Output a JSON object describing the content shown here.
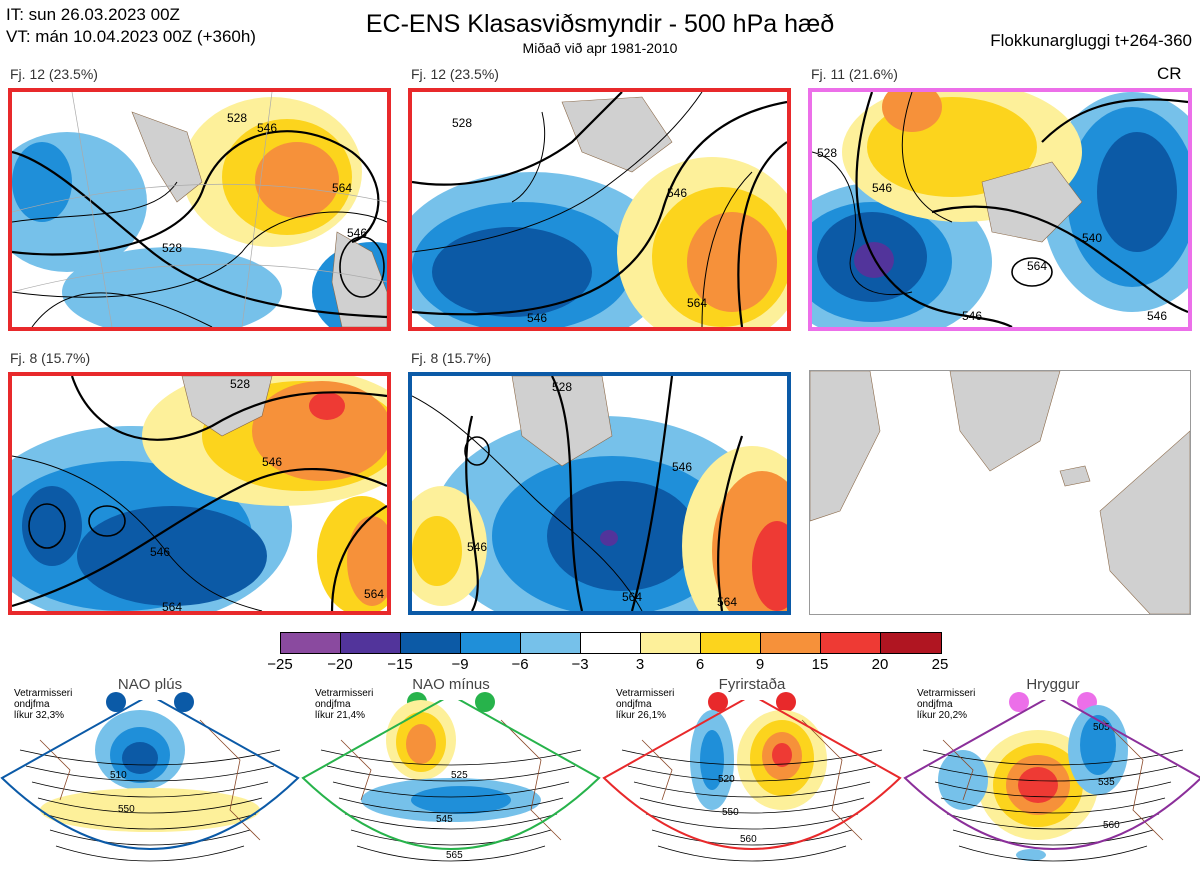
{
  "header": {
    "it_line": "IT: sun 26.03.2023 00Z",
    "vt_line": "VT: mán 10.04.2023 00Z  (+360h)",
    "title": "EC-ENS Klasasviðsmyndir - 500 hPa hæð",
    "subtitle": "Miðað við apr 1981-2010",
    "window": "Flokkunargluggi t+264-360"
  },
  "panels": [
    {
      "label": "Fj. 12 (23.5%)",
      "border": "#e8292b",
      "contours": [
        "528",
        "546",
        "564",
        "546",
        "528"
      ]
    },
    {
      "label": "Fj. 12 (23.5%)",
      "border": "#e8292b",
      "contours": [
        "528",
        "546",
        "564",
        "546"
      ]
    },
    {
      "label": "Fj. 11 (21.6%)",
      "border": "#ec6fe9",
      "tag": "CR",
      "contours": [
        "528",
        "546",
        "540",
        "564",
        "546",
        "546"
      ]
    },
    {
      "label": "Fj. 8 (15.7%)",
      "border": "#e8292b",
      "contours": [
        "528",
        "546",
        "546",
        "564",
        "564"
      ]
    },
    {
      "label": "Fj. 8 (15.7%)",
      "border": "#0b5aa7",
      "contours": [
        "528",
        "546",
        "546",
        "564",
        "564"
      ]
    }
  ],
  "colorbar": {
    "colors": [
      "#8a4a9f",
      "#52349b",
      "#0c5aa6",
      "#1f8fd9",
      "#76c1ea",
      "#ffffff",
      "#fdf09a",
      "#fcd41d",
      "#f6913a",
      "#ee3a34",
      "#b01521"
    ],
    "ticks": [
      "−25",
      "−20",
      "−15",
      "−9",
      "−6",
      "−3",
      "3",
      "6",
      "9",
      "15",
      "20",
      "25"
    ]
  },
  "regimes": [
    {
      "title": "NAO plús",
      "note": [
        "Vetrarmisseri",
        "ondjfma",
        "líkur 32,3%"
      ],
      "color": "#0b5aa7",
      "edge": "#0b5aa7",
      "contours": [
        "510",
        "550"
      ]
    },
    {
      "title": "NAO mínus",
      "note": [
        "Vetrarmisseri",
        "ondjfma",
        "líkur 21,4%"
      ],
      "color": "#27b34b",
      "edge": "#27b34b",
      "contours": [
        "525",
        "545",
        "565"
      ]
    },
    {
      "title": "Fyrirstaða",
      "note": [
        "Vetrarmisseri",
        "ondjfma",
        "líkur 26,1%"
      ],
      "color": "#e8292b",
      "edge": "#e8292b",
      "contours": [
        "520",
        "550",
        "560"
      ]
    },
    {
      "title": "Hryggur",
      "note": [
        "Vetrarmisseri",
        "ondjfma",
        "líkur 20,2%"
      ],
      "color": "#ec6fe9",
      "edge": "#8b2f9a",
      "contours": [
        "505",
        "535",
        "560"
      ]
    }
  ]
}
